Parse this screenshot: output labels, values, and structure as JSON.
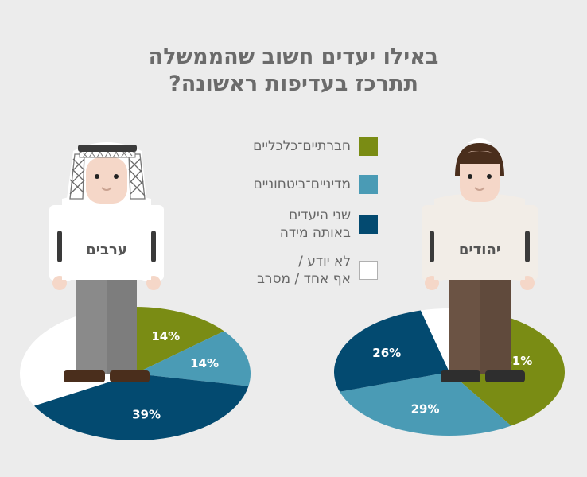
{
  "title": {
    "line1": "באילו יעדים חשוב שהממשלה",
    "line2": "תתרכז בעדיפות ראשונה?"
  },
  "legend": [
    {
      "label": "חברתיים־כלכליים",
      "color": "#7a8c14"
    },
    {
      "label": "מדיניים־ביטחוניים",
      "color": "#4a9bb5"
    },
    {
      "label": "שני היעדים\nבאותה מידה",
      "color": "#034a70"
    },
    {
      "label": "לא יודע /\nאף אחד / מסרב",
      "color": "#ffffff"
    }
  ],
  "figures": {
    "left_label": "ערבים",
    "right_label": "יהודים"
  },
  "chart_data": [
    {
      "type": "pie",
      "group": "ערבים",
      "categories": [
        "חברתיים־כלכליים",
        "מדיניים־ביטחוניים",
        "שני היעדים באותה מידה",
        "לא יודע / אף אחד / מסרב"
      ],
      "values": [
        14,
        14,
        39,
        33
      ],
      "labels": [
        "14%",
        "14%",
        "39%",
        ""
      ],
      "colors": [
        "#7a8c14",
        "#4a9bb5",
        "#034a70",
        "#ffffff"
      ]
    },
    {
      "type": "pie",
      "group": "יהודים",
      "categories": [
        "חברתיים־כלכליים",
        "מדיניים־ביטחוניים",
        "שני היעדים באותה מידה",
        "לא יודע / אף אחד / מסרב"
      ],
      "values": [
        41,
        29,
        26,
        4
      ],
      "labels": [
        "41%",
        "29%",
        "26%",
        ""
      ],
      "colors": [
        "#7a8c14",
        "#4a9bb5",
        "#034a70",
        "#ffffff"
      ]
    }
  ]
}
